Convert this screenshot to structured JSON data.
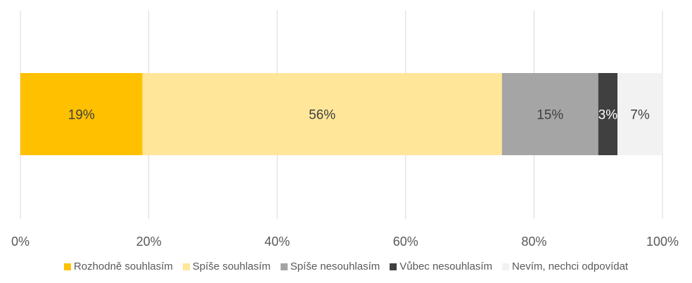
{
  "chart_data": {
    "type": "bar",
    "orientation": "horizontal",
    "stacked": "100%",
    "categories": [
      ""
    ],
    "series": [
      {
        "name": "Rozhodně souhlasím",
        "values": [
          19
        ],
        "label": "19%",
        "color": "#FFC000",
        "label_color": "#404040"
      },
      {
        "name": "Spíše souhlasím",
        "values": [
          56
        ],
        "label": "56%",
        "color": "#FFE699",
        "label_color": "#404040"
      },
      {
        "name": "Spíše nesouhlasím",
        "values": [
          15
        ],
        "label": "15%",
        "color": "#A5A5A5",
        "label_color": "#404040"
      },
      {
        "name": "Vůbec nesouhlasím",
        "values": [
          3
        ],
        "label": "3%",
        "color": "#404040",
        "label_color": "#FFFFFF"
      },
      {
        "name": "Nevím, nechci odpovídat",
        "values": [
          7
        ],
        "label": "7%",
        "color": "#F2F2F2",
        "label_color": "#404040"
      }
    ],
    "xlim": [
      0,
      100
    ],
    "x_ticks": [
      "0%",
      "20%",
      "40%",
      "60%",
      "80%",
      "100%"
    ],
    "grid": true,
    "legend": "bottom",
    "title": "",
    "xlabel": "",
    "ylabel": ""
  }
}
